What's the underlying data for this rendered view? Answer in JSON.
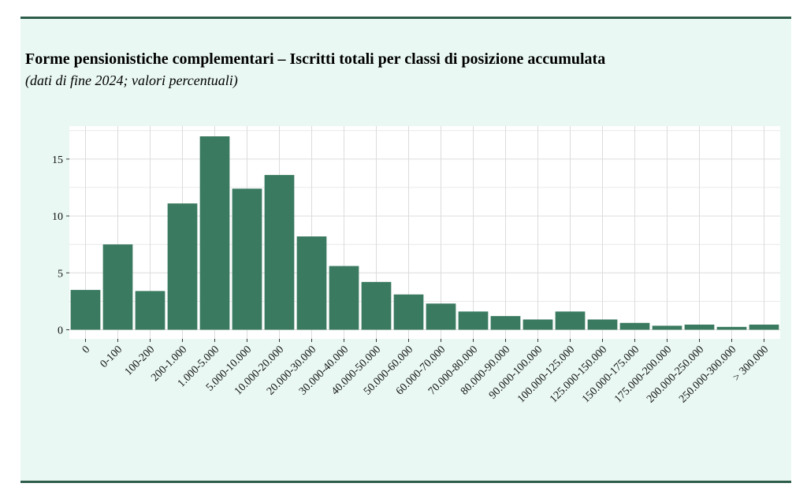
{
  "header": {
    "title": "Forme pensionistiche complementari – Iscritti totali per classi di posizione accumulata",
    "subtitle": "(dati di fine 2024; valori percentuali)"
  },
  "colors": {
    "panel_background": "#e9f8f2",
    "rule": "#2d5c4b",
    "bar": "#3a7a60",
    "plot_background": "#ffffff",
    "grid": "#dcdcdc"
  },
  "chart_data": {
    "type": "bar",
    "title": "Forme pensionistiche complementari – Iscritti totali per classi di posizione accumulata",
    "subtitle": "(dati di fine 2024; valori percentuali)",
    "xlabel": "",
    "ylabel": "",
    "categories": [
      "0",
      "0-100",
      "100-200",
      "200-1.000",
      "1.000-5.000",
      "5.000-10.000",
      "10.000-20.000",
      "20.000-30.000",
      "30.000-40.000",
      "40.000-50.000",
      "50.000-60.000",
      "60.000-70.000",
      "70.000-80.000",
      "80.000-90.000",
      "90.000-100.000",
      "100.000-125.000",
      "125.000-150.000",
      "150.000-175.000",
      "175.000-200.000",
      "200.000-250.000",
      "250.000-300.000",
      "> 300.000"
    ],
    "values": [
      3.5,
      7.5,
      3.4,
      11.1,
      17.0,
      12.4,
      13.6,
      8.2,
      5.6,
      4.2,
      3.1,
      2.3,
      1.6,
      1.2,
      0.9,
      1.6,
      0.9,
      0.6,
      0.35,
      0.45,
      0.25,
      0.45
    ],
    "ylim": [
      -0.8,
      17.9
    ],
    "yticks": [
      0,
      5,
      10,
      15
    ],
    "ytick_labels": [
      "0",
      "5",
      "10",
      "15"
    ],
    "grid": true,
    "legend": "none"
  }
}
